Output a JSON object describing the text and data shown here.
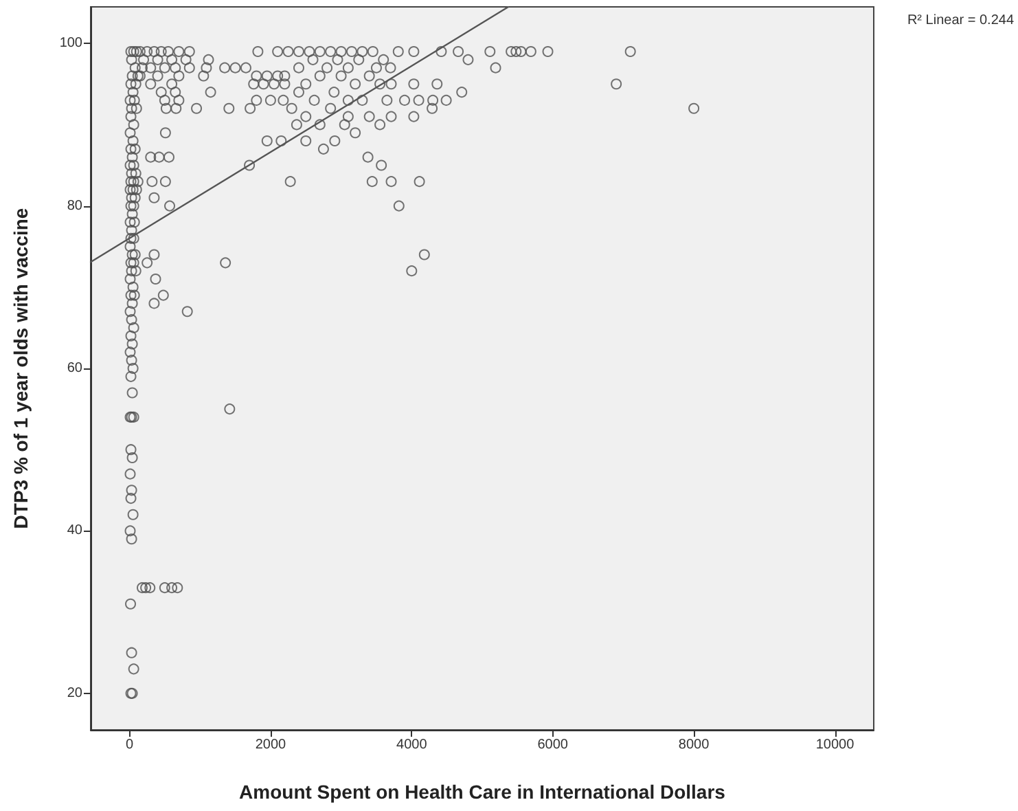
{
  "chart_data": {
    "type": "scatter",
    "xlabel": "Amount Spent on Health Care in International Dollars",
    "ylabel": "DTP3 % of 1 year olds with vaccine",
    "annotations": [
      "R² Linear = 0.244"
    ],
    "xlim": [
      -550,
      10550
    ],
    "ylim": [
      15.5,
      104.5
    ],
    "xticks": [
      0,
      2000,
      4000,
      6000,
      8000,
      10000
    ],
    "yticks": [
      20,
      40,
      60,
      80,
      100
    ],
    "marker": "circle",
    "series": [
      {
        "color": "#505050",
        "x": [
          20,
          60,
          100,
          30,
          80,
          40,
          120,
          20,
          90,
          50,
          10,
          70,
          30,
          100,
          20,
          60,
          10,
          50,
          20,
          80,
          40,
          10,
          60,
          30,
          90,
          20,
          60,
          120,
          10,
          50,
          100,
          30,
          80,
          20,
          60,
          40,
          10,
          70,
          30,
          20,
          60,
          10,
          40,
          80,
          20,
          60,
          30,
          90,
          10,
          50,
          20,
          70,
          40,
          10,
          30,
          60,
          20,
          40,
          10,
          30,
          50,
          20,
          40,
          10,
          30,
          60,
          20,
          40,
          10,
          30,
          20,
          50,
          10,
          30,
          15,
          30,
          60,
          20,
          40,
          180,
          230,
          290,
          500,
          600,
          680,
          150,
          250,
          350,
          450,
          550,
          700,
          850,
          200,
          400,
          600,
          800,
          180,
          300,
          500,
          650,
          850,
          150,
          400,
          700,
          300,
          600,
          450,
          650,
          500,
          700,
          520,
          660,
          950,
          510,
          300,
          420,
          560,
          320,
          510,
          350,
          570,
          350,
          250,
          370,
          480,
          350,
          820,
          1120,
          1090,
          1350,
          1500,
          1650,
          1050,
          1820,
          2100,
          2250,
          2400,
          2550,
          2700,
          2850,
          3000,
          3150,
          3300,
          3450,
          1800,
          1950,
          2100,
          2200,
          2400,
          2600,
          2800,
          2950,
          3100,
          3250,
          1150,
          1760,
          1900,
          2050,
          2200,
          2500,
          2700,
          3000,
          3200,
          3400,
          1800,
          2000,
          2180,
          2400,
          2620,
          2900,
          3100,
          3300,
          1410,
          1710,
          2300,
          2850,
          3100,
          3400,
          2370,
          2500,
          2700,
          3050,
          1950,
          2150,
          2500,
          2910,
          2750,
          3200,
          1700,
          2280,
          1360,
          1420,
          3500,
          3600,
          3700,
          3550,
          3710,
          4030,
          4360,
          3650,
          3900,
          4100,
          4300,
          4490,
          4290,
          3710,
          4030,
          3550,
          4710,
          4800,
          5190,
          3810,
          4030,
          4420,
          4660,
          5110,
          5410,
          5480,
          5550,
          5690,
          5930,
          7100,
          6900,
          8000,
          3380,
          3570,
          3440,
          3710,
          4110,
          3820,
          4180,
          4000
        ],
        "values": [
          99,
          99,
          99,
          98,
          97,
          96,
          96,
          95,
          95,
          94,
          93,
          93,
          92,
          92,
          91,
          90,
          89,
          88,
          87,
          87,
          86,
          85,
          85,
          84,
          84,
          83,
          83,
          83,
          82,
          82,
          82,
          81,
          81,
          80,
          80,
          79,
          78,
          78,
          77,
          76,
          76,
          75,
          74,
          74,
          73,
          73,
          72,
          72,
          71,
          70,
          69,
          69,
          68,
          67,
          66,
          65,
          64,
          63,
          62,
          61,
          60,
          59,
          57,
          54,
          54,
          54,
          50,
          49,
          47,
          45,
          44,
          42,
          40,
          39,
          31,
          25,
          23,
          20,
          20,
          33,
          33,
          33,
          33,
          33,
          33,
          99,
          99,
          99,
          99,
          99,
          99,
          99,
          98,
          98,
          98,
          98,
          97,
          97,
          97,
          97,
          97,
          96,
          96,
          96,
          95,
          95,
          94,
          94,
          93,
          93,
          92,
          92,
          92,
          89,
          86,
          86,
          86,
          83,
          83,
          81,
          80,
          74,
          73,
          71,
          69,
          68,
          67,
          98,
          97,
          97,
          97,
          97,
          96,
          99,
          99,
          99,
          99,
          99,
          99,
          99,
          99,
          99,
          99,
          99,
          96,
          96,
          96,
          96,
          97,
          98,
          97,
          98,
          97,
          98,
          94,
          95,
          95,
          95,
          95,
          95,
          96,
          96,
          95,
          96,
          93,
          93,
          93,
          94,
          93,
          94,
          93,
          93,
          92,
          92,
          92,
          92,
          91,
          91,
          90,
          91,
          90,
          90,
          88,
          88,
          88,
          88,
          87,
          89,
          85,
          83,
          73,
          55,
          97,
          98,
          97,
          95,
          95,
          95,
          95,
          93,
          93,
          93,
          93,
          93,
          92,
          91,
          91,
          90,
          94,
          98,
          97,
          99,
          99,
          99,
          99,
          99,
          99,
          99,
          99,
          99,
          99,
          99,
          95,
          92,
          86,
          85,
          83,
          83,
          83,
          80,
          74,
          72
        ]
      },
      {
        "type": "line",
        "color": "#555555",
        "marker": "none",
        "x": [
          -550,
          5370
        ],
        "values": [
          73.1,
          104.5
        ]
      }
    ]
  }
}
